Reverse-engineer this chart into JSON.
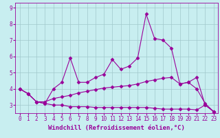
{
  "xlabel": "Windchill (Refroidissement éolien,°C)",
  "bg_color": "#c8eef0",
  "line_color": "#990099",
  "grid_color": "#a0c8cc",
  "xlim": [
    -0.5,
    23.5
  ],
  "ylim": [
    2.5,
    9.3
  ],
  "xticks": [
    0,
    1,
    2,
    3,
    4,
    5,
    6,
    7,
    8,
    9,
    10,
    11,
    12,
    13,
    14,
    15,
    16,
    17,
    18,
    19,
    20,
    21,
    22,
    23
  ],
  "yticks": [
    3,
    4,
    5,
    6,
    7,
    8,
    9
  ],
  "line1_x": [
    0,
    1,
    2,
    3,
    4,
    5,
    6,
    7,
    8,
    9,
    10,
    11,
    12,
    13,
    14,
    15,
    16,
    17,
    18,
    19,
    20,
    21,
    22,
    23
  ],
  "line1_y": [
    4.0,
    3.7,
    3.2,
    3.1,
    4.0,
    4.4,
    5.9,
    4.4,
    4.4,
    4.7,
    4.9,
    5.8,
    5.2,
    5.4,
    5.9,
    8.6,
    7.1,
    7.0,
    6.5,
    4.3,
    4.4,
    4.7,
    3.0,
    2.6
  ],
  "line2_x": [
    0,
    1,
    2,
    3,
    4,
    5,
    6,
    7,
    8,
    9,
    10,
    11,
    12,
    13,
    14,
    15,
    16,
    17,
    18,
    19,
    20,
    21,
    22,
    23
  ],
  "line2_y": [
    4.0,
    3.7,
    3.2,
    3.2,
    3.4,
    3.5,
    3.6,
    3.75,
    3.85,
    3.95,
    4.05,
    4.1,
    4.15,
    4.2,
    4.3,
    4.45,
    4.55,
    4.65,
    4.7,
    4.3,
    4.4,
    4.0,
    3.1,
    2.6
  ],
  "line3_x": [
    0,
    1,
    2,
    3,
    4,
    5,
    6,
    7,
    8,
    9,
    10,
    11,
    12,
    13,
    14,
    15,
    16,
    17,
    18,
    19,
    20,
    21,
    22,
    23
  ],
  "line3_y": [
    4.0,
    3.7,
    3.2,
    3.1,
    3.0,
    3.0,
    2.9,
    2.9,
    2.9,
    2.85,
    2.85,
    2.85,
    2.85,
    2.85,
    2.85,
    2.85,
    2.8,
    2.75,
    2.75,
    2.75,
    2.75,
    2.7,
    3.0,
    2.6
  ],
  "marker": "D",
  "markersize": 2.5,
  "linewidth": 0.8,
  "tick_fontsize": 5.5,
  "xlabel_fontsize": 6.5
}
